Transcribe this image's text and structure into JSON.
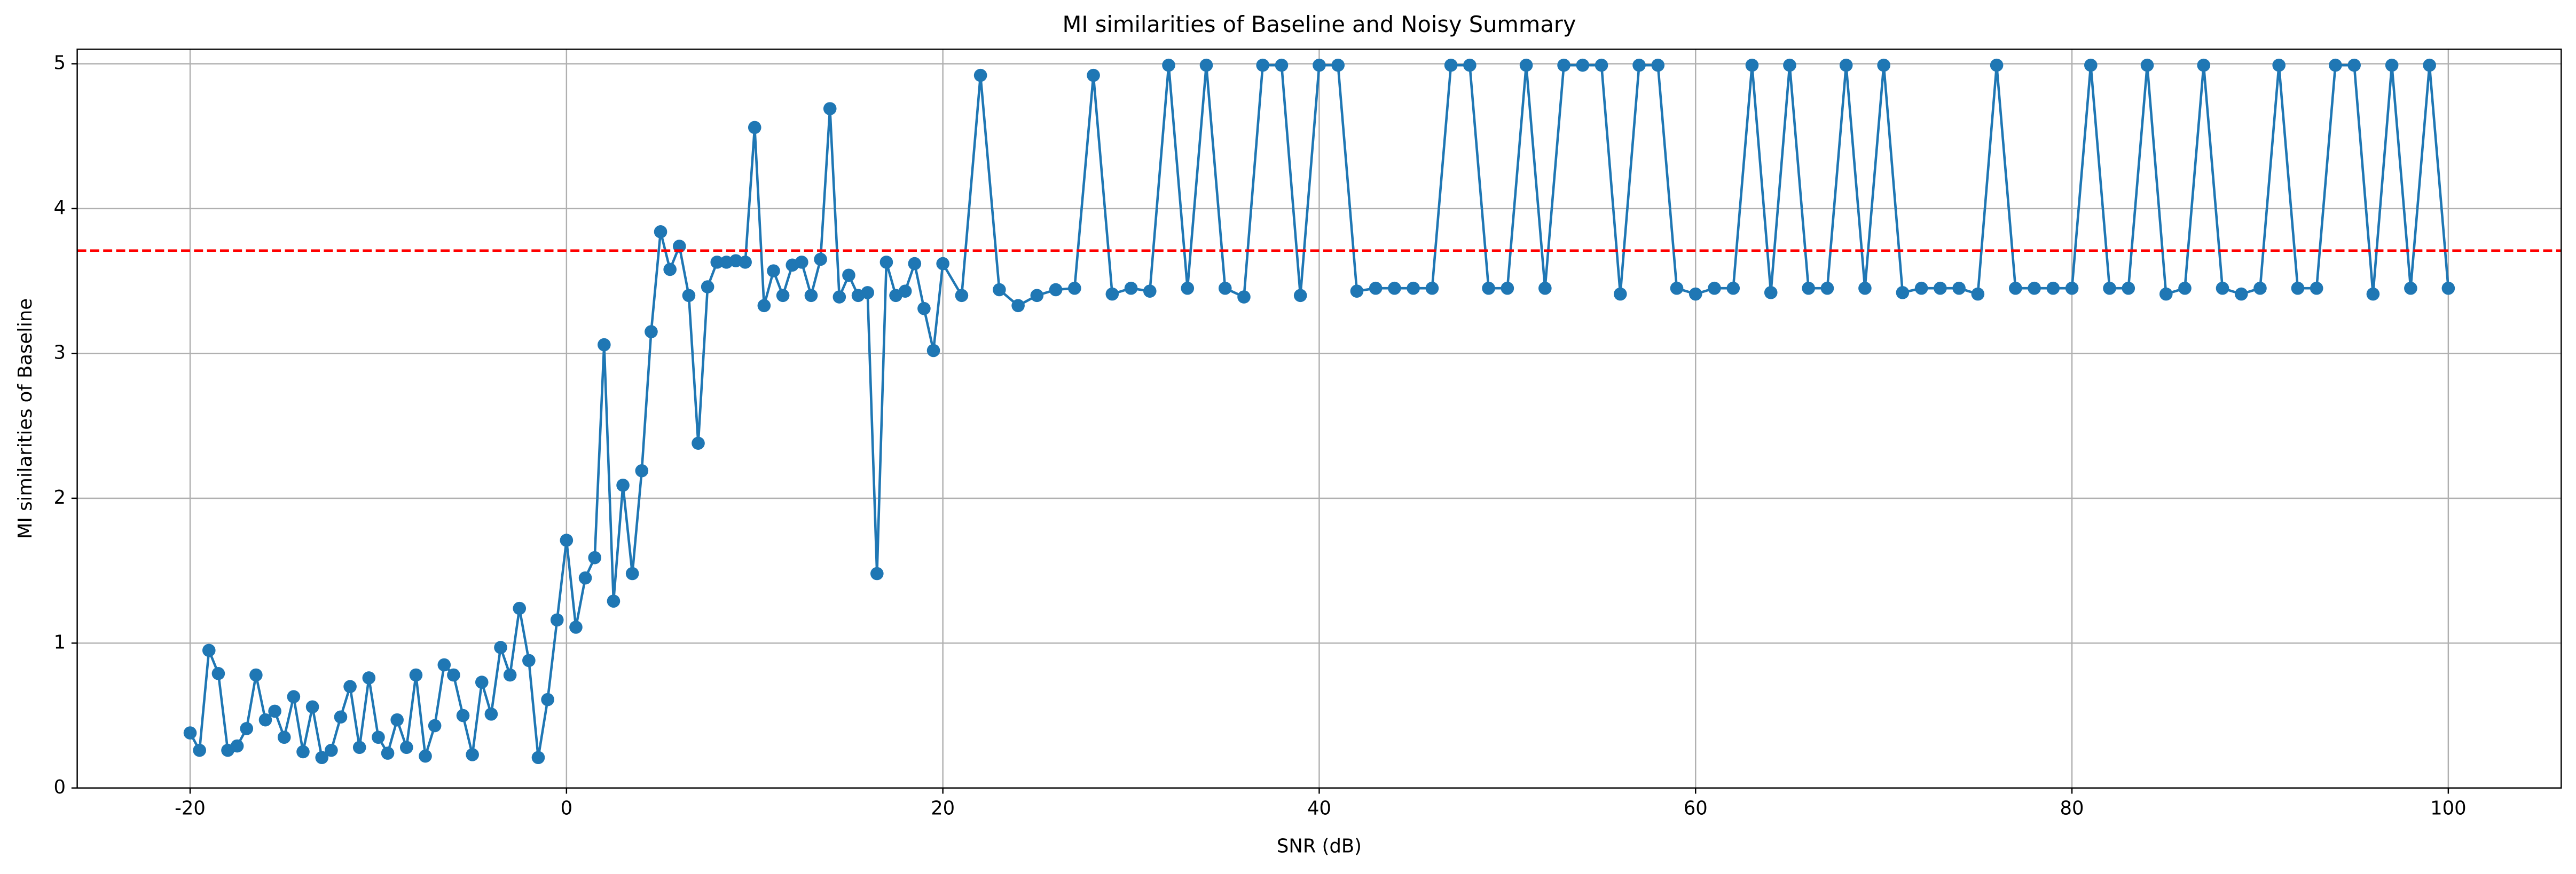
{
  "chart_data": {
    "type": "line",
    "title": "MI similarities of Baseline and Noisy Summary",
    "x_label": "SNR (dB)",
    "y_label": "MI similarities of Baseline",
    "color": "#1f77b4",
    "marker": "circle",
    "x": [
      -20,
      -19.5,
      -19,
      -18.5,
      -18,
      -17.5,
      -17,
      -16.5,
      -16,
      -15.5,
      -15,
      -14.5,
      -14,
      -13.5,
      -13,
      -12.5,
      -12,
      -11.5,
      -11,
      -10.5,
      -10,
      -9.5,
      -9,
      -8.5,
      -8,
      -7.5,
      -7,
      -6.5,
      -6,
      -5.5,
      -5,
      -4.5,
      -4,
      -3.5,
      -3,
      -2.5,
      -2,
      -1.5,
      -1,
      -0.5,
      0,
      0.5,
      1,
      1.5,
      2,
      2.5,
      3,
      3.5,
      4,
      4.5,
      5,
      5.5,
      6,
      6.5,
      7,
      7.5,
      8,
      8.5,
      9,
      9.5,
      10,
      10.5,
      11,
      11.5,
      12,
      12.5,
      13,
      13.5,
      14,
      14.5,
      15,
      15.5,
      16,
      16.5,
      17,
      17.5,
      18,
      18.5,
      19,
      19.5,
      20,
      21,
      22,
      23,
      24,
      25,
      26,
      27,
      28,
      29,
      30,
      31,
      32,
      33,
      34,
      35,
      36,
      37,
      38,
      39,
      40,
      41,
      42,
      43,
      44,
      45,
      46,
      47,
      48,
      49,
      50,
      51,
      52,
      53,
      54,
      55,
      56,
      57,
      58,
      59,
      60,
      61,
      62,
      63,
      64,
      65,
      66,
      67,
      68,
      69,
      70,
      71,
      72,
      73,
      74,
      75,
      76,
      77,
      78,
      79,
      80,
      81,
      82,
      83,
      84,
      85,
      86,
      87,
      88,
      89,
      90,
      91,
      92,
      93,
      94,
      95,
      96,
      97,
      98,
      99,
      100
    ],
    "values": [
      0.38,
      0.26,
      0.95,
      0.79,
      0.26,
      0.29,
      0.41,
      0.78,
      0.47,
      0.53,
      0.35,
      0.63,
      0.25,
      0.56,
      0.21,
      0.26,
      0.49,
      0.7,
      0.28,
      0.76,
      0.35,
      0.24,
      0.47,
      0.28,
      0.78,
      0.22,
      0.43,
      0.85,
      0.78,
      0.5,
      0.23,
      0.73,
      0.51,
      0.97,
      0.78,
      1.24,
      0.88,
      0.21,
      0.61,
      1.16,
      1.71,
      1.11,
      1.45,
      1.59,
      3.06,
      1.29,
      2.09,
      1.48,
      2.19,
      3.15,
      3.84,
      3.58,
      3.74,
      3.4,
      2.38,
      3.46,
      3.63,
      3.63,
      3.64,
      3.63,
      4.56,
      3.33,
      3.57,
      3.4,
      3.61,
      3.63,
      3.4,
      3.65,
      4.69,
      3.39,
      3.54,
      3.4,
      3.42,
      1.48,
      3.63,
      3.4,
      3.43,
      3.62,
      3.31,
      3.02,
      3.62,
      3.4,
      4.92,
      3.44,
      3.33,
      3.4,
      3.44,
      3.45,
      4.92,
      3.41,
      3.45,
      3.43,
      4.99,
      3.45,
      4.99,
      3.45,
      3.39,
      4.99,
      4.99,
      3.4,
      4.99,
      4.99,
      3.43,
      3.45,
      3.45,
      3.45,
      3.45,
      4.99,
      4.99,
      3.45,
      3.45,
      4.99,
      3.45,
      4.99,
      4.99,
      4.99,
      3.41,
      4.99,
      4.99,
      3.45,
      3.41,
      3.45,
      3.45,
      4.99,
      3.42,
      4.99,
      3.45,
      3.45,
      4.99,
      3.45,
      4.99,
      3.42,
      3.45,
      3.45,
      3.45,
      3.41,
      4.99,
      3.45,
      3.45,
      3.45,
      3.45,
      4.99,
      3.45,
      3.45,
      4.99,
      3.41,
      3.45,
      4.99,
      3.45,
      3.41,
      3.45,
      4.99,
      3.45,
      3.45,
      4.99,
      4.99,
      3.41,
      4.99,
      3.45,
      4.99,
      3.45
    ],
    "reference_line": {
      "value": 3.71,
      "color": "#ff0000",
      "style": "dashed"
    },
    "xlim": [
      -26,
      106
    ],
    "xticks": [
      -20,
      0,
      20,
      40,
      60,
      80,
      100
    ],
    "ylim": [
      0,
      5.1
    ],
    "yticks": [
      0,
      1,
      2,
      3,
      4,
      5
    ],
    "grid": true
  }
}
